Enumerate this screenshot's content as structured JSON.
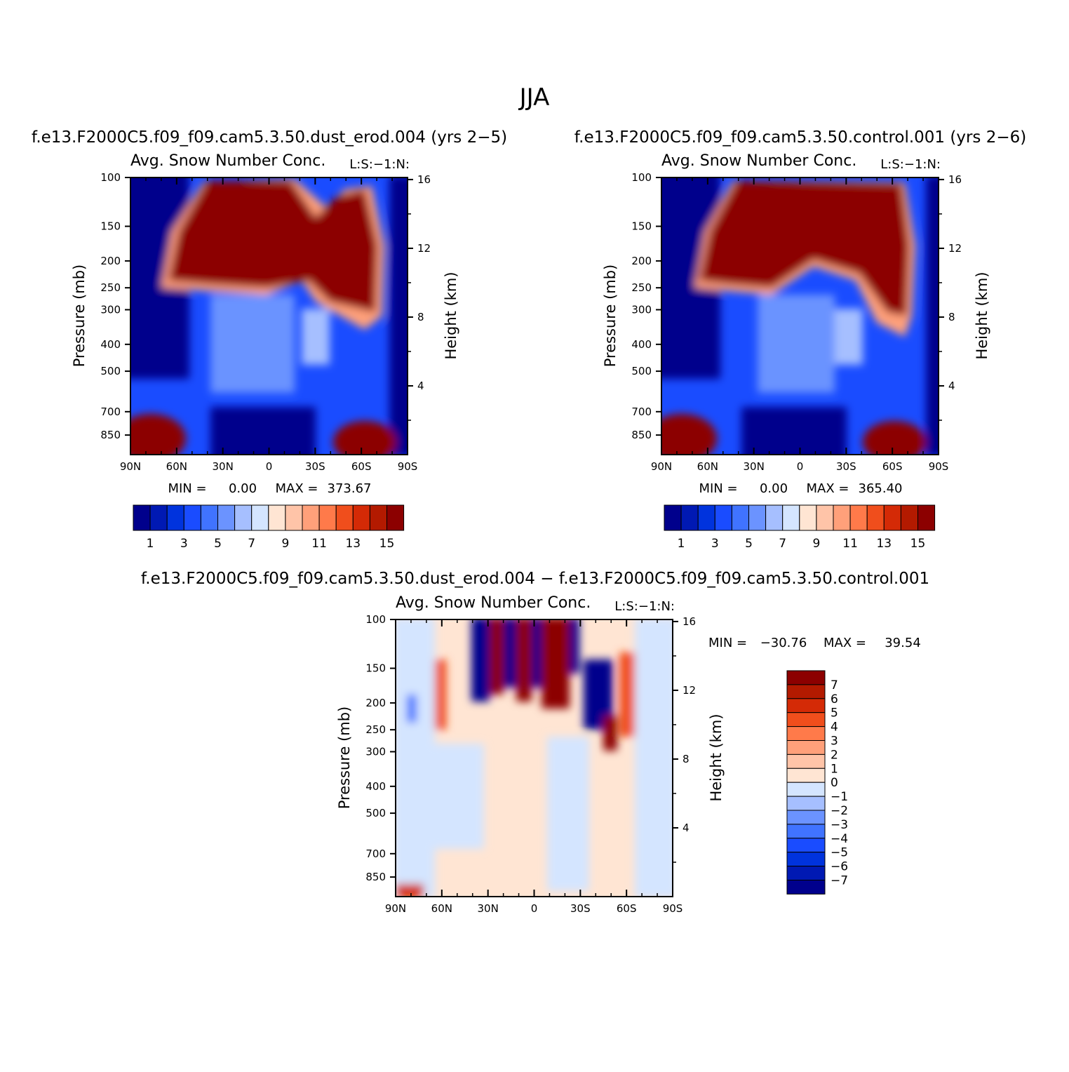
{
  "figure_title": "JJA",
  "chart_data": [
    {
      "type": "heatmap",
      "case_title": "f.e13.F2000C5.f09_f09.cam5.3.50.dust_erod.004 (yrs 2−5)",
      "title": "Avg. Snow Number Conc.",
      "title_right": "L:S:−1:N:",
      "ylabel": "Pressure (mb)",
      "ylabel_right": "Height (km)",
      "x_ticks": [
        "90N",
        "60N",
        "30N",
        "0",
        "30S",
        "60S",
        "90S"
      ],
      "y_ticks": [
        "100",
        "150",
        "200",
        "250",
        "300",
        "400",
        "500",
        "700",
        "850"
      ],
      "y_ticks_right": [
        "16",
        "12",
        "8",
        "4"
      ],
      "min_label": "MIN =",
      "min_value": "0.00",
      "max_label": "MAX =",
      "max_value": "373.67",
      "colorbar_labels": [
        "1",
        "3",
        "5",
        "7",
        "9",
        "11",
        "13",
        "15"
      ],
      "levels": [
        1,
        2,
        3,
        4,
        5,
        6,
        7,
        8,
        9,
        10,
        11,
        12,
        13,
        14,
        15
      ]
    },
    {
      "type": "heatmap",
      "case_title": "f.e13.F2000C5.f09_f09.cam5.3.50.control.001 (yrs 2−6)",
      "title": "Avg. Snow Number Conc.",
      "title_right": "L:S:−1:N:",
      "ylabel": "Pressure (mb)",
      "ylabel_right": "Height (km)",
      "x_ticks": [
        "90N",
        "60N",
        "30N",
        "0",
        "30S",
        "60S",
        "90S"
      ],
      "y_ticks": [
        "100",
        "150",
        "200",
        "250",
        "300",
        "400",
        "500",
        "700",
        "850"
      ],
      "y_ticks_right": [
        "16",
        "12",
        "8",
        "4"
      ],
      "min_label": "MIN =",
      "min_value": "0.00",
      "max_label": "MAX =",
      "max_value": "365.40",
      "colorbar_labels": [
        "1",
        "3",
        "5",
        "7",
        "9",
        "11",
        "13",
        "15"
      ],
      "levels": [
        1,
        2,
        3,
        4,
        5,
        6,
        7,
        8,
        9,
        10,
        11,
        12,
        13,
        14,
        15
      ]
    },
    {
      "type": "heatmap",
      "case_title": "f.e13.F2000C5.f09_f09.cam5.3.50.dust_erod.004 − f.e13.F2000C5.f09_f09.cam5.3.50.control.001",
      "title": "Avg. Snow Number Conc.",
      "title_right": "L:S:−1:N:",
      "ylabel": "Pressure (mb)",
      "ylabel_right": "Height (km)",
      "x_ticks": [
        "90N",
        "60N",
        "30N",
        "0",
        "30S",
        "60S",
        "90S"
      ],
      "y_ticks": [
        "100",
        "150",
        "200",
        "250",
        "300",
        "400",
        "500",
        "700",
        "850"
      ],
      "y_ticks_right": [
        "16",
        "12",
        "8",
        "4"
      ],
      "min_label": "MIN =",
      "min_value": "−30.76",
      "max_label": "MAX =",
      "max_value": "39.54",
      "colorbar_labels": [
        "7",
        "6",
        "5",
        "4",
        "3",
        "2",
        "1",
        "0",
        "−1",
        "−2",
        "−3",
        "−4",
        "−5",
        "−6",
        "−7"
      ],
      "levels": [
        7,
        6,
        5,
        4,
        3,
        2,
        1,
        0,
        -1,
        -2,
        -3,
        -4,
        -5,
        -6,
        -7
      ]
    }
  ],
  "colors": {
    "scale_low_to_high": [
      "#00008c",
      "#0019b3",
      "#0033dd",
      "#1a4cff",
      "#4073ff",
      "#6b93ff",
      "#a6bfff",
      "#d4e5ff",
      "#ffe5d3",
      "#ffc4a8",
      "#ffa07a",
      "#ff7a4a",
      "#f04e1c",
      "#d42a06",
      "#b31a00",
      "#8c0000"
    ]
  }
}
